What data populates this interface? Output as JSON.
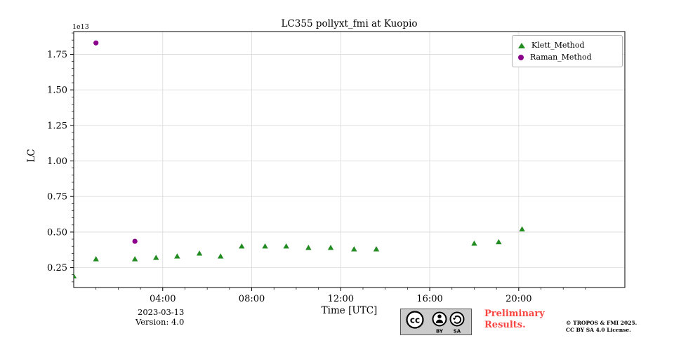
{
  "colors": {
    "klett_green": "#228b22",
    "raman_purple": "#8b008b",
    "preliminary_red": "#f94541",
    "grid": "#d9d9d9",
    "axis": "#000000",
    "cc_badge_bg": "#cbcbcb"
  },
  "footer": {
    "date": "2023-03-13",
    "version": "Version: 4.0",
    "preliminary_line1": "Preliminary",
    "preliminary_line2": "Results.",
    "copyright_line1": "© TROPOS & FMI 2025.",
    "copyright_line2": "CC BY SA 4.0 License.",
    "cc_text": "cc",
    "cc_by_label": "BY",
    "cc_sa_label": "SA"
  },
  "chart_data": {
    "type": "scatter",
    "title": "LC355 pollyxt_fmi at Kuopio",
    "xlabel": "Time [UTC]",
    "ylabel": "LC",
    "y_offset_text": "1e13",
    "xlim_hours": [
      0,
      24.77
    ],
    "ylim": [
      0.11,
      1.91
    ],
    "grid": true,
    "x_ticks": [
      {
        "hour": 4,
        "label": "04:00"
      },
      {
        "hour": 8,
        "label": "08:00"
      },
      {
        "hour": 12,
        "label": "12:00"
      },
      {
        "hour": 16,
        "label": "16:00"
      },
      {
        "hour": 20,
        "label": "20:00"
      }
    ],
    "y_ticks": [
      {
        "value": 0.25,
        "label": "0.25"
      },
      {
        "value": 0.5,
        "label": "0.50"
      },
      {
        "value": 0.75,
        "label": "0.75"
      },
      {
        "value": 1.0,
        "label": "1.00"
      },
      {
        "value": 1.25,
        "label": "1.25"
      },
      {
        "value": 1.5,
        "label": "1.50"
      },
      {
        "value": 1.75,
        "label": "1.75"
      }
    ],
    "legend": {
      "position": "upper right",
      "entries": [
        {
          "label": "Klett_Method",
          "marker": "triangle",
          "color": "#228b22"
        },
        {
          "label": "Raman_Method",
          "marker": "circle",
          "color": "#8b008b"
        }
      ]
    },
    "series": [
      {
        "name": "Klett_Method",
        "marker": "triangle",
        "color": "#228b22",
        "points": [
          [
            0.0,
            0.19
          ],
          [
            1.0,
            0.31
          ],
          [
            2.75,
            0.31
          ],
          [
            3.7,
            0.32
          ],
          [
            4.65,
            0.33
          ],
          [
            5.65,
            0.35
          ],
          [
            6.6,
            0.33
          ],
          [
            7.55,
            0.4
          ],
          [
            8.6,
            0.4
          ],
          [
            9.55,
            0.4
          ],
          [
            10.55,
            0.39
          ],
          [
            11.55,
            0.39
          ],
          [
            12.6,
            0.38
          ],
          [
            13.6,
            0.38
          ],
          [
            18.0,
            0.42
          ],
          [
            19.1,
            0.43
          ],
          [
            20.15,
            0.52
          ]
        ]
      },
      {
        "name": "Raman_Method",
        "marker": "circle",
        "color": "#8b008b",
        "points": [
          [
            1.0,
            1.83
          ],
          [
            2.75,
            0.435
          ]
        ]
      }
    ]
  }
}
